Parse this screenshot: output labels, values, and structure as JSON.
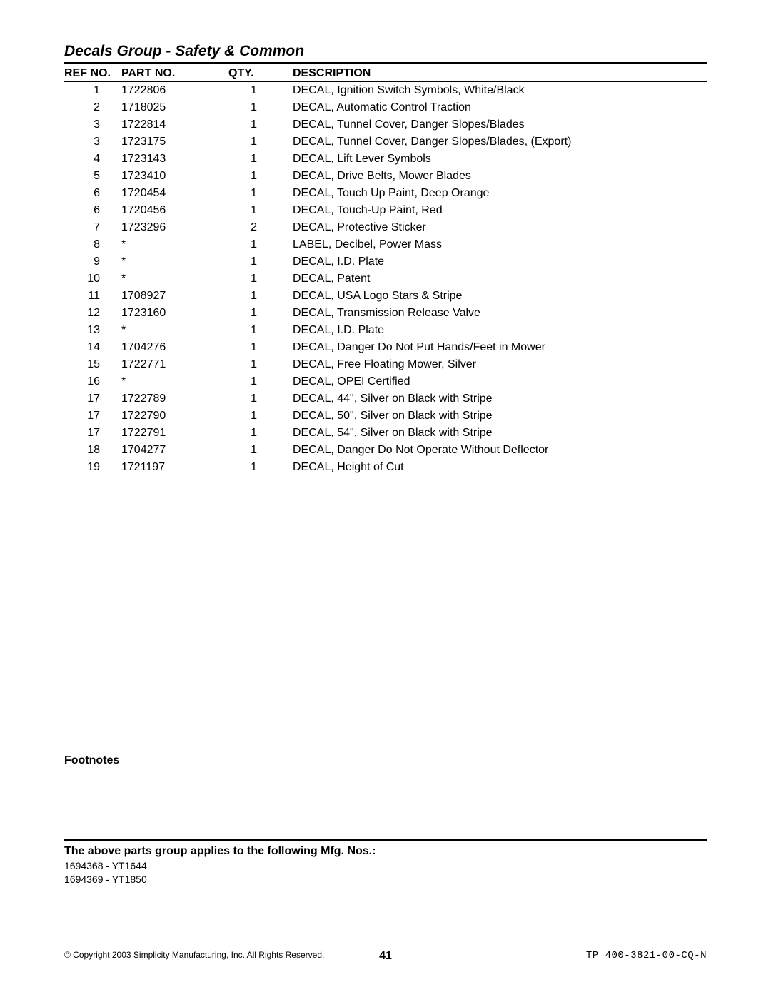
{
  "title": "Decals Group - Safety & Common",
  "columns": [
    "REF NO.",
    "PART NO.",
    "QTY.",
    "DESCRIPTION"
  ],
  "rows": [
    {
      "ref": "1",
      "part": "1722806",
      "qty": "1",
      "desc": "DECAL, Ignition Switch Symbols, White/Black"
    },
    {
      "ref": "2",
      "part": "1718025",
      "qty": "1",
      "desc": "DECAL, Automatic Control Traction"
    },
    {
      "ref": "3",
      "part": "1722814",
      "qty": "1",
      "desc": "DECAL, Tunnel Cover, Danger Slopes/Blades"
    },
    {
      "ref": "3",
      "part": "1723175",
      "qty": "1",
      "desc": "DECAL, Tunnel Cover, Danger Slopes/Blades, (Export)"
    },
    {
      "ref": "4",
      "part": "1723143",
      "qty": "1",
      "desc": "DECAL, Lift Lever Symbols"
    },
    {
      "ref": "5",
      "part": "1723410",
      "qty": "1",
      "desc": "DECAL, Drive Belts, Mower Blades"
    },
    {
      "ref": "6",
      "part": "1720454",
      "qty": "1",
      "desc": "DECAL, Touch Up Paint, Deep Orange"
    },
    {
      "ref": "6",
      "part": "1720456",
      "qty": "1",
      "desc": "DECAL, Touch-Up Paint, Red"
    },
    {
      "ref": "7",
      "part": "1723296",
      "qty": "2",
      "desc": "DECAL, Protective Sticker"
    },
    {
      "ref": "8",
      "part": "*",
      "qty": "1",
      "desc": "LABEL, Decibel, Power Mass"
    },
    {
      "ref": "9",
      "part": "*",
      "qty": "1",
      "desc": "DECAL, I.D. Plate"
    },
    {
      "ref": "10",
      "part": "*",
      "qty": "1",
      "desc": "DECAL, Patent"
    },
    {
      "ref": "11",
      "part": "1708927",
      "qty": "1",
      "desc": "DECAL, USA Logo Stars & Stripe"
    },
    {
      "ref": "12",
      "part": "1723160",
      "qty": "1",
      "desc": "DECAL, Transmission Release Valve"
    },
    {
      "ref": "13",
      "part": "*",
      "qty": "1",
      "desc": "DECAL, I.D. Plate"
    },
    {
      "ref": "14",
      "part": "1704276",
      "qty": "1",
      "desc": "DECAL, Danger Do Not Put Hands/Feet in Mower"
    },
    {
      "ref": "15",
      "part": "1722771",
      "qty": "1",
      "desc": "DECAL, Free Floating Mower, Silver"
    },
    {
      "ref": "16",
      "part": "*",
      "qty": "1",
      "desc": "DECAL, OPEI Certified"
    },
    {
      "ref": "17",
      "part": "1722789",
      "qty": "1",
      "desc": "DECAL, 44\", Silver on Black with Stripe"
    },
    {
      "ref": "17",
      "part": "1722790",
      "qty": "1",
      "desc": "DECAL, 50\", Silver on Black with Stripe"
    },
    {
      "ref": "17",
      "part": "1722791",
      "qty": "1",
      "desc": "DECAL, 54\", Silver on Black with Stripe"
    },
    {
      "ref": "18",
      "part": "1704277",
      "qty": "1",
      "desc": "DECAL, Danger Do Not Operate Without Deflector"
    },
    {
      "ref": "19",
      "part": "1721197",
      "qty": "1",
      "desc": "DECAL, Height of Cut"
    }
  ],
  "footnotes_label": "Footnotes",
  "applies_label": "The above parts group applies to the following Mfg. Nos.:",
  "mfg_nos": [
    "1694368 - YT1644",
    "1694369 - YT1850"
  ],
  "footer": {
    "copyright": "© Copyright 2003 Simplicity Manufacturing, Inc. All Rights Reserved.",
    "page_no": "41",
    "doc_no": "TP 400-3821-00-CQ-N"
  }
}
